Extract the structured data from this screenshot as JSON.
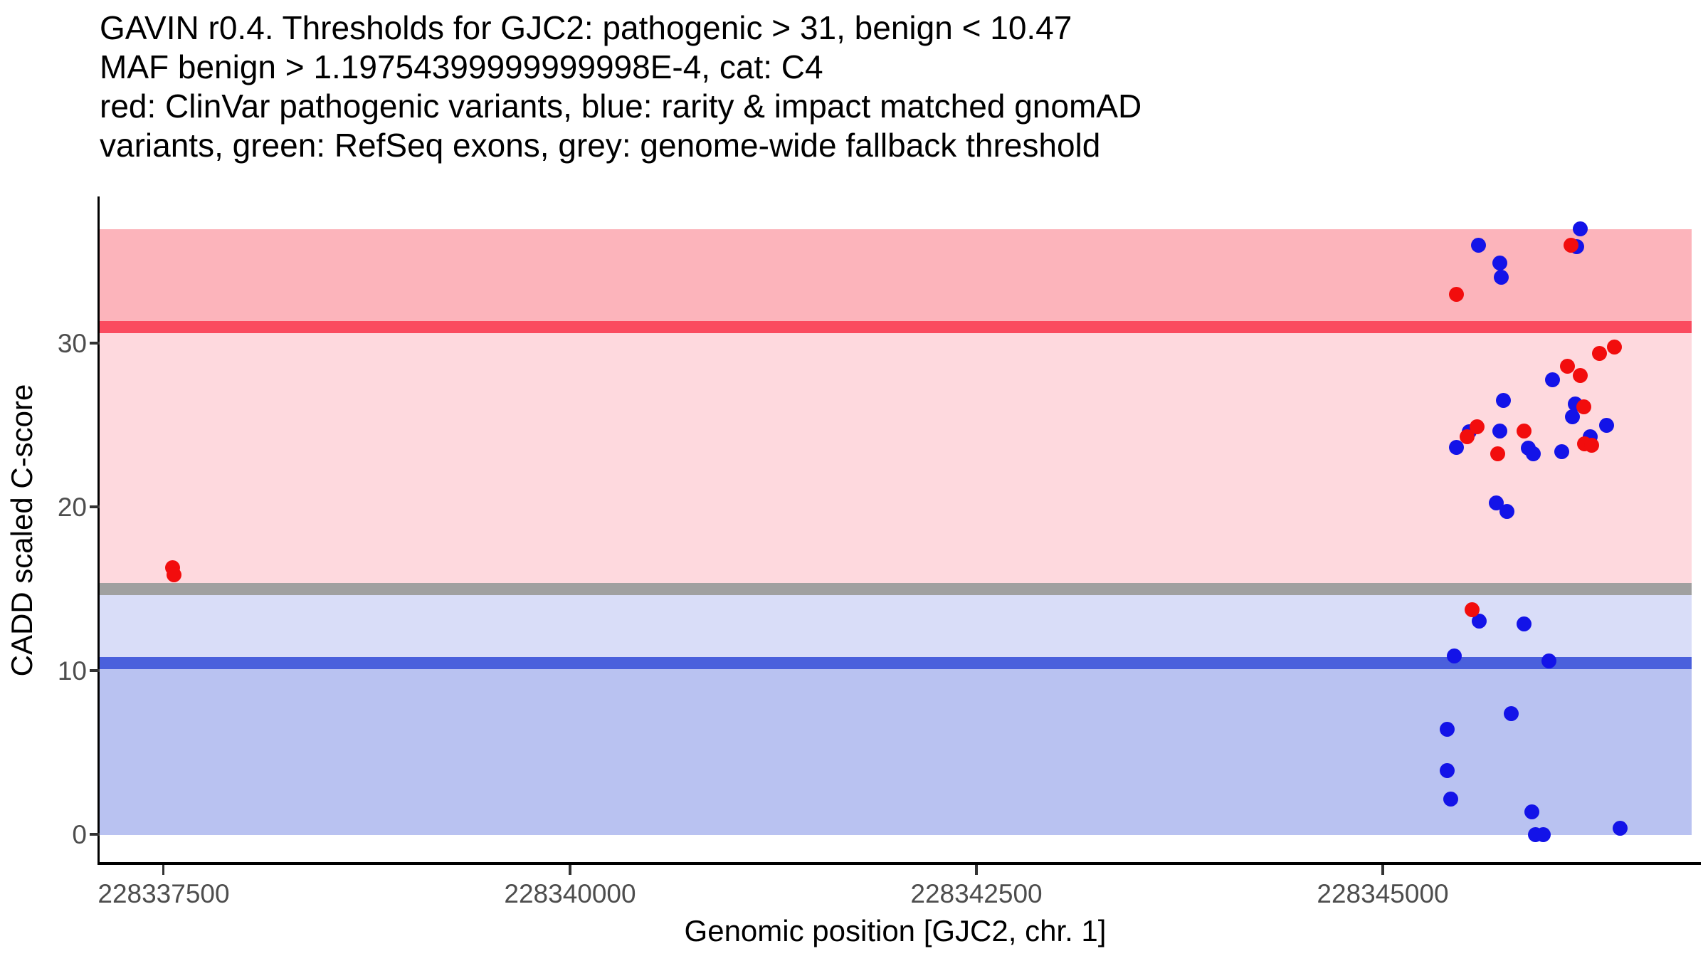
{
  "title": {
    "line1": "GAVIN r0.4. Thresholds for GJC2: pathogenic > 31, benign < 10.47",
    "line2": "MAF benign > 1.19754399999999998E-4, cat: C4",
    "line3": "red: ClinVar pathogenic variants, blue: rarity & impact matched gnomAD",
    "line4": "variants, green: RefSeq exons, grey: genome-wide fallback threshold"
  },
  "chart_data": {
    "type": "scatter",
    "xlabel": "Genomic position [GJC2, chr. 1]",
    "ylabel": "CADD scaled C-score",
    "x_range": [
      228337106,
      228346900
    ],
    "y_range": [
      -1.78,
      38.87
    ],
    "x_ticks": {
      "values": [
        228337500,
        228340000,
        228342500,
        228345000
      ],
      "labels": [
        "228337500",
        "228340000",
        "228342500",
        "228345000"
      ]
    },
    "y_ticks": {
      "values": [
        0,
        10,
        20,
        30
      ],
      "labels": [
        "0",
        "10",
        "20",
        "30"
      ]
    },
    "grid": false,
    "legend": "none",
    "bands": [
      {
        "name": "pathogenic-region",
        "from": 31.04,
        "to": 36.96,
        "color": "#FCB4BB"
      },
      {
        "name": "intermediate-region",
        "from": 15.02,
        "to": 31.04,
        "color": "#FED9DE"
      },
      {
        "name": "benign-upper-region",
        "from": 10.48,
        "to": 15.02,
        "color": "#D9DDF8"
      },
      {
        "name": "benign-lower-region",
        "from": -0.02,
        "to": 10.48,
        "color": "#B9C2F1"
      }
    ],
    "threshold_lines": [
      {
        "name": "pathogenic-threshold",
        "value": 31,
        "color": "#FA4B5F",
        "thickness_px": 17
      },
      {
        "name": "genome-wide-fallback-threshold",
        "value": 15,
        "color": "#A0A0A0",
        "thickness_px": 17
      },
      {
        "name": "benign-threshold",
        "value": 10.47,
        "color": "#4A60DC",
        "thickness_px": 17
      }
    ],
    "series": [
      {
        "name": "rarity & impact matched gnomAD variants",
        "short": "gnomad-variant",
        "color": "#1313E8",
        "points": [
          [
            228345394,
            6.43
          ],
          [
            228345394,
            3.91
          ],
          [
            228345416,
            2.17
          ],
          [
            228345438,
            10.91
          ],
          [
            228345455,
            23.61
          ],
          [
            228345534,
            24.57
          ],
          [
            228345587,
            36.0
          ],
          [
            228345591,
            13.04
          ],
          [
            228345696,
            20.22
          ],
          [
            228345722,
            34.91
          ],
          [
            228345722,
            24.61
          ],
          [
            228345731,
            34.04
          ],
          [
            228345740,
            26.48
          ],
          [
            228345762,
            19.74
          ],
          [
            228345788,
            7.35
          ],
          [
            228345867,
            12.83
          ],
          [
            228345897,
            23.57
          ],
          [
            228345919,
            1.39
          ],
          [
            228345928,
            23.22
          ],
          [
            228345941,
            0.0
          ],
          [
            228345989,
            0.0
          ],
          [
            228346020,
            10.61
          ],
          [
            228346046,
            27.78
          ],
          [
            228346099,
            23.39
          ],
          [
            228346165,
            25.52
          ],
          [
            228346182,
            26.3
          ],
          [
            228346195,
            35.91
          ],
          [
            228346213,
            36.96
          ],
          [
            228346278,
            24.3
          ],
          [
            228346375,
            25.0
          ],
          [
            228346458,
            0.39
          ]
        ]
      },
      {
        "name": "ClinVar pathogenic variants",
        "short": "clinvar-variant",
        "color": "#F20D0D",
        "points": [
          [
            228337553,
            16.3
          ],
          [
            228337562,
            15.87
          ],
          [
            228345455,
            33.0
          ],
          [
            228345517,
            24.3
          ],
          [
            228345551,
            13.74
          ],
          [
            228345582,
            24.91
          ],
          [
            228345709,
            23.26
          ],
          [
            228345871,
            24.65
          ],
          [
            228346134,
            28.57
          ],
          [
            228346160,
            36.0
          ],
          [
            228346213,
            28.04
          ],
          [
            228346235,
            26.09
          ],
          [
            228346239,
            23.87
          ],
          [
            228346287,
            23.78
          ],
          [
            228346335,
            29.35
          ],
          [
            228346423,
            29.78
          ]
        ]
      }
    ]
  },
  "colors": {
    "background": "#FFFFFF",
    "axis": "#000000",
    "tick_label": "#4D4D4D",
    "title_text": "#000000"
  }
}
